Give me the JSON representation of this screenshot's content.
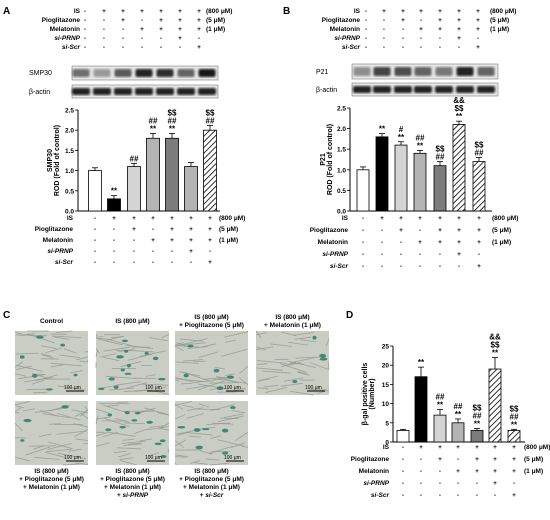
{
  "panels": {
    "A": {
      "letter": "A",
      "conditions": [
        {
          "label": "IS",
          "italic": false,
          "marks": [
            "-",
            "+",
            "+",
            "+",
            "+",
            "+",
            "+"
          ],
          "note": "(800 μM)"
        },
        {
          "label": "Pioglitazone",
          "italic": false,
          "marks": [
            "-",
            "-",
            "+",
            "-",
            "+",
            "+",
            "+"
          ],
          "note": "(5 μM)"
        },
        {
          "label": "Melatonin",
          "italic": false,
          "marks": [
            "-",
            "-",
            "-",
            "+",
            "+",
            "+",
            "+"
          ],
          "note": "(1 μM)"
        },
        {
          "label": "si-PRNP",
          "italic": true,
          "marks": [
            "-",
            "-",
            "-",
            "-",
            "-",
            "+",
            "-"
          ],
          "note": ""
        },
        {
          "label": "si-Scr",
          "italic": true,
          "marks": [
            "-",
            "-",
            "-",
            "-",
            "-",
            "-",
            "+"
          ],
          "note": ""
        }
      ],
      "blot_labels": [
        "SMP30",
        "β-actin"
      ]
    },
    "B": {
      "letter": "B",
      "conditions": [
        {
          "label": "IS",
          "italic": false,
          "marks": [
            "-",
            "+",
            "+",
            "+",
            "+",
            "+",
            "+"
          ],
          "note": "(800 μM)"
        },
        {
          "label": "Pioglitazone",
          "italic": false,
          "marks": [
            "-",
            "-",
            "+",
            "-",
            "+",
            "+",
            "+"
          ],
          "note": "(5 μM)"
        },
        {
          "label": "Melatonin",
          "italic": false,
          "marks": [
            "-",
            "-",
            "-",
            "+",
            "+",
            "+",
            "+"
          ],
          "note": "(1 μM)"
        },
        {
          "label": "si-PRNP",
          "italic": true,
          "marks": [
            "-",
            "-",
            "-",
            "-",
            "-",
            "+",
            "-"
          ],
          "note": ""
        },
        {
          "label": "si-Scr",
          "italic": true,
          "marks": [
            "-",
            "-",
            "-",
            "-",
            "-",
            "-",
            "+"
          ],
          "note": ""
        }
      ],
      "blot_labels": [
        "P21",
        "β-actin"
      ]
    },
    "C": {
      "letter": "C",
      "top_labels": [
        [
          "Control"
        ],
        [
          "IS  (800 μM)"
        ],
        [
          "IS  (800 μM)",
          "+ Pioglitazone  (5 μM)"
        ],
        [
          "IS  (800 μM)",
          "+ Melatonin  (1 μM)"
        ]
      ],
      "bottom_labels": [
        [
          "IS  (800 μM)",
          "+ Pioglitazone  (5 μM)",
          "+ Melatonin  (1 μM)"
        ],
        [
          "IS  (800 μM)",
          "+ Pioglitazone  (5 μM)",
          "+ Melatonin  (1 μM)",
          "+ si-PRNP"
        ],
        [
          "IS  (800 μM)",
          "+ Pioglitazone  (5 μM)",
          "+ Melatonin  (1 μM)",
          "+ si-Scr"
        ]
      ],
      "scale_bar": "100 μm"
    },
    "D": {
      "letter": "D",
      "conditions": [
        {
          "label": "IS",
          "italic": false,
          "marks": [
            "-",
            "+",
            "+",
            "+",
            "+",
            "+",
            "+"
          ],
          "note": "(800 μM)"
        },
        {
          "label": "Pioglitazone",
          "italic": false,
          "marks": [
            "-",
            "-",
            "+",
            "-",
            "+",
            "+",
            "+"
          ],
          "note": "(5 μM)"
        },
        {
          "label": "Melatonin",
          "italic": false,
          "marks": [
            "-",
            "-",
            "-",
            "+",
            "+",
            "+",
            "+"
          ],
          "note": "(1 μM)"
        },
        {
          "label": "si-PRNP",
          "italic": true,
          "marks": [
            "-",
            "-",
            "-",
            "-",
            "-",
            "+",
            "-"
          ],
          "note": ""
        },
        {
          "label": "si-Scr",
          "italic": true,
          "marks": [
            "-",
            "-",
            "-",
            "-",
            "-",
            "-",
            "+"
          ],
          "note": ""
        }
      ]
    }
  },
  "chart_data": [
    {
      "panel": "A",
      "type": "bar",
      "ylabel": "SMP30",
      "ylabel2": "ROD (Fold of control)",
      "ylim": [
        0,
        2.5
      ],
      "yticks": [
        "0.0",
        "0.5",
        "1.0",
        "1.5",
        "2.0",
        "2.5"
      ],
      "values": [
        1.0,
        0.3,
        1.1,
        1.8,
        1.8,
        1.1,
        2.0
      ],
      "errors": [
        0.07,
        0.08,
        0.08,
        0.12,
        0.12,
        0.1,
        0.12
      ],
      "fills": [
        "#ffffff",
        "#000000",
        "#d4d4d4",
        "#b4b4b4",
        "#7c7c7c",
        "#b4b4b4",
        "hatch"
      ],
      "annotations": [
        [],
        [
          "**"
        ],
        [
          "##"
        ],
        [
          "##",
          "**"
        ],
        [
          "$$",
          "##",
          "**"
        ],
        [],
        [
          "$$",
          "##"
        ]
      ]
    },
    {
      "panel": "B",
      "type": "bar",
      "ylabel": "P21",
      "ylabel2": "ROD (Fold of control)",
      "ylim": [
        0,
        2.5
      ],
      "yticks": [
        "0.0",
        "0.5",
        "1.0",
        "1.5",
        "2.0",
        "2.5"
      ],
      "values": [
        1.0,
        1.8,
        1.6,
        1.4,
        1.1,
        2.1,
        1.2
      ],
      "errors": [
        0.07,
        0.08,
        0.08,
        0.07,
        0.1,
        0.08,
        0.1
      ],
      "fills": [
        "#ffffff",
        "#000000",
        "#d4d4d4",
        "#b4b4b4",
        "#7c7c7c",
        "hatch",
        "hatch"
      ],
      "annotations": [
        [],
        [
          "**"
        ],
        [
          "#",
          "**"
        ],
        [
          "##",
          "**"
        ],
        [
          "$$",
          "##"
        ],
        [
          "&&",
          "$$",
          "**"
        ],
        [
          "$$",
          "##"
        ]
      ]
    },
    {
      "panel": "D",
      "type": "bar",
      "ylabel": "β-gal positive cells",
      "ylabel2": "(Number)",
      "ylim": [
        0,
        25
      ],
      "yticks": [
        "0",
        "5",
        "10",
        "15",
        "20",
        "25"
      ],
      "values": [
        3,
        17,
        7,
        5,
        3,
        19,
        3
      ],
      "errors": [
        0.3,
        2.5,
        1.5,
        1.0,
        0.5,
        3.0,
        0.3
      ],
      "fills": [
        "#ffffff",
        "#000000",
        "#d4d4d4",
        "#b4b4b4",
        "#7c7c7c",
        "hatch",
        "hatch"
      ],
      "annotations": [
        [],
        [
          "**"
        ],
        [
          "##",
          "**"
        ],
        [
          "##",
          "**"
        ],
        [
          "$$",
          "##",
          "**"
        ],
        [
          "&&",
          "$$",
          "**"
        ],
        [
          "$$",
          "##",
          "**"
        ]
      ]
    }
  ]
}
